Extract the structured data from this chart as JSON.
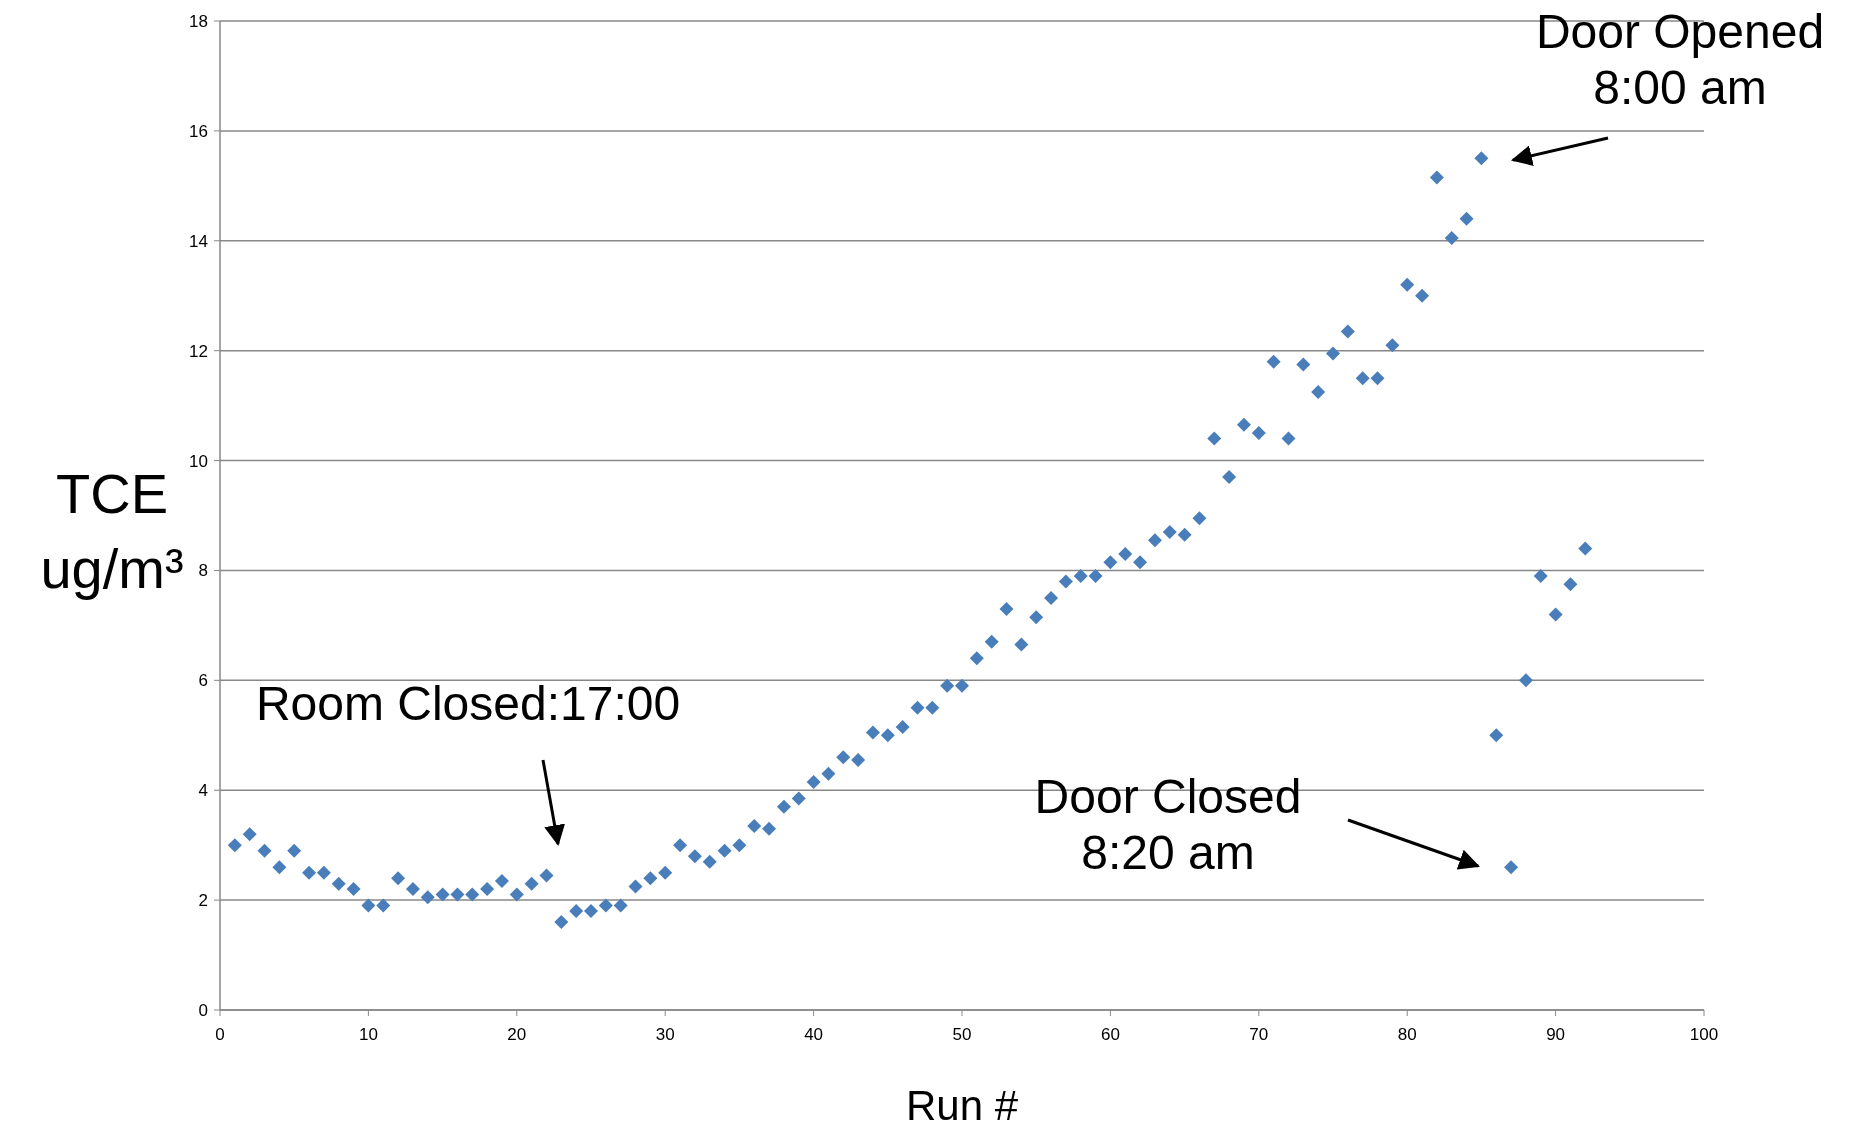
{
  "chart_data": {
    "type": "scatter",
    "xlabel": "Run #",
    "ylabel": "TCE ug/m³",
    "x": [
      1,
      2,
      3,
      4,
      5,
      6,
      7,
      8,
      9,
      10,
      11,
      12,
      13,
      14,
      15,
      16,
      17,
      18,
      19,
      20,
      21,
      22,
      23,
      24,
      25,
      26,
      27,
      28,
      29,
      30,
      31,
      32,
      33,
      34,
      35,
      36,
      37,
      38,
      39,
      40,
      41,
      42,
      43,
      44,
      45,
      46,
      47,
      48,
      49,
      50,
      51,
      52,
      53,
      54,
      55,
      56,
      57,
      58,
      59,
      60,
      61,
      62,
      63,
      64,
      65,
      66,
      67,
      68,
      69,
      70,
      71,
      72,
      73,
      74,
      75,
      76,
      77,
      78,
      79,
      80,
      81,
      82,
      83,
      84,
      85,
      86,
      87,
      88,
      89,
      90,
      91,
      92
    ],
    "series": [
      {
        "color": "#4a7ebb",
        "values": [
          3.0,
          3.2,
          2.9,
          2.6,
          2.9,
          2.5,
          2.5,
          2.3,
          2.2,
          1.9,
          1.9,
          2.4,
          2.2,
          2.05,
          2.1,
          2.1,
          2.1,
          2.2,
          2.35,
          2.1,
          2.3,
          2.45,
          1.6,
          1.8,
          1.8,
          1.9,
          1.9,
          2.25,
          2.4,
          2.5,
          3.0,
          2.8,
          2.7,
          2.9,
          3.0,
          3.35,
          3.3,
          3.7,
          3.85,
          4.15,
          4.3,
          4.6,
          4.55,
          5.05,
          5.0,
          5.15,
          5.5,
          5.5,
          5.9,
          5.9,
          6.4,
          6.7,
          7.3,
          6.65,
          7.15,
          7.5,
          7.8,
          7.9,
          7.9,
          8.15,
          8.3,
          8.15,
          8.55,
          8.7,
          8.65,
          8.95,
          10.4,
          9.7,
          10.65,
          10.5,
          11.8,
          10.4,
          11.75,
          11.25,
          11.95,
          12.35,
          11.5,
          11.5,
          12.1,
          13.2,
          13.0,
          15.15,
          14.05,
          14.4,
          15.5,
          5.0,
          2.6,
          6.0,
          7.9,
          7.2,
          7.75,
          8.4
        ]
      }
    ],
    "xlim": [
      0,
      100
    ],
    "xticks": [
      0,
      10,
      20,
      30,
      40,
      50,
      60,
      70,
      80,
      90,
      100
    ],
    "ylim": [
      0,
      18
    ],
    "yticks": [
      0,
      2,
      4,
      6,
      8,
      10,
      12,
      14,
      16,
      18
    ],
    "grid": "y",
    "marker": "diamond",
    "annotations": [
      "Door Opened\n8:00 am",
      "Room Closed:17:00",
      "Door Closed\n8:20 am"
    ]
  }
}
